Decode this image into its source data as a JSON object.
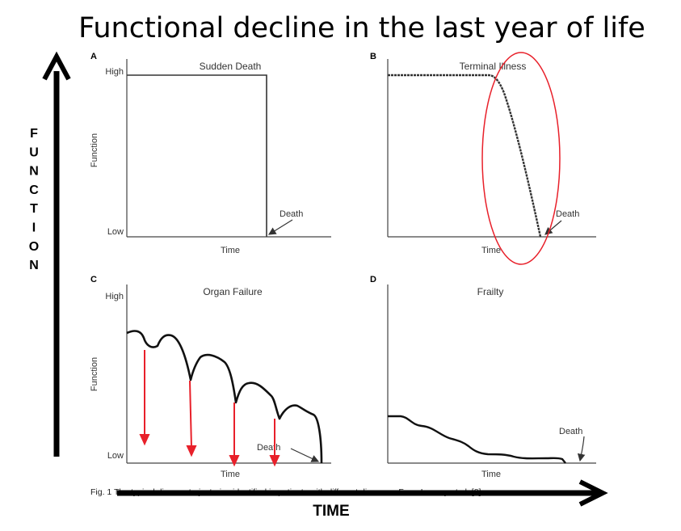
{
  "slide_title": "Functional decline in the last year of life",
  "y_axis_letters": [
    "F",
    "U",
    "N",
    "C",
    "T",
    "I",
    "O",
    "N"
  ],
  "x_axis_label": "TIME",
  "caption": "Fig. 1 The typical disease trajectories identified in patients with different diseases. From Lunney et al. [8]",
  "panels": [
    {
      "letter": "A",
      "title": "Sudden Death",
      "y_label": "Function",
      "high": "High",
      "low": "Low",
      "x_label": "Time",
      "death": "Death"
    },
    {
      "letter": "B",
      "title": "Terminal Illness",
      "y_label": "",
      "high": "",
      "low": "",
      "x_label": "Time",
      "death": "Death"
    },
    {
      "letter": "C",
      "title": "Organ Failure",
      "y_label": "Function",
      "high": "High",
      "low": "Low",
      "x_label": "Time",
      "death": "Death"
    },
    {
      "letter": "D",
      "title": "Frailty",
      "y_label": "",
      "high": "",
      "low": "",
      "x_label": "Time",
      "death": "Death"
    }
  ],
  "colors": {
    "highlight": "#e8202a",
    "line": "#000000",
    "axis": "#444444"
  }
}
